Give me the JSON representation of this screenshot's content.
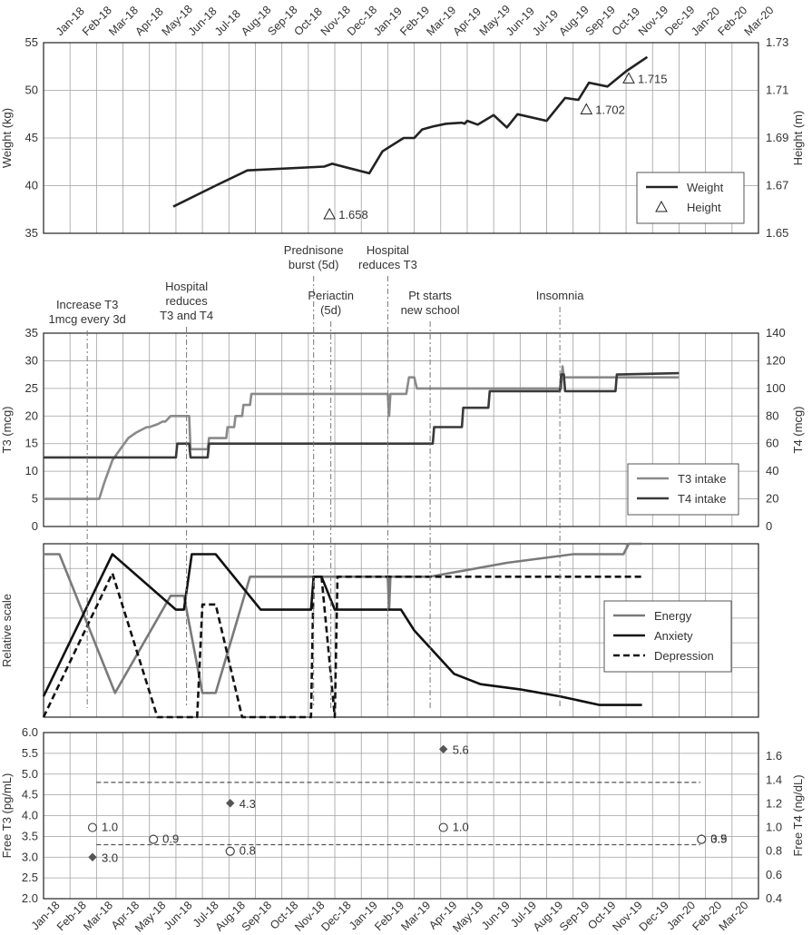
{
  "months": [
    "Jan-18",
    "Feb-18",
    "Mar-18",
    "Apr-18",
    "May-18",
    "Jun-18",
    "Jul-18",
    "Aug-18",
    "Sep-18",
    "Oct-18",
    "Nov-18",
    "Dec-18",
    "Jan-19",
    "Feb-19",
    "Mar-19",
    "Apr-19",
    "May-19",
    "Jun-19",
    "Jul-19",
    "Aug-19",
    "Sep-19",
    "Oct-19",
    "Nov-19",
    "Dec-19",
    "Jan-20",
    "Feb-20",
    "Mar-20"
  ],
  "annotations": [
    {
      "id": "t3-increase",
      "lines": [
        "Increase T3",
        "1mcg every 3d"
      ],
      "x": 1.65
    },
    {
      "id": "hospital-reduces-t3-t4",
      "lines": [
        "Hospital",
        "reduces",
        "T3 and T4"
      ],
      "x": 5.4
    },
    {
      "id": "prednisone",
      "lines": [
        "Prednisone",
        "burst (5d)"
      ],
      "x": 10.2
    },
    {
      "id": "periactin",
      "lines": [
        "Periactin",
        "(5d)"
      ],
      "x": 10.85
    },
    {
      "id": "hospital-reduces-t3",
      "lines": [
        "Hospital",
        "reduces T3"
      ],
      "x": 13.0
    },
    {
      "id": "new-school",
      "lines": [
        "Pt starts",
        "new school"
      ],
      "x": 14.6
    },
    {
      "id": "insomnia",
      "lines": [
        "Insomnia"
      ],
      "x": 19.5
    }
  ],
  "chart_data": [
    {
      "id": "growth",
      "type": "line",
      "ylabel": "Weight (kg)",
      "y2label": "Height (m)",
      "ylim": [
        35,
        55
      ],
      "yticks": [
        35,
        40,
        45,
        50,
        55
      ],
      "y2lim": [
        1.65,
        1.73
      ],
      "y2ticks": [
        "1.65",
        "1.67",
        "1.69",
        "1.71",
        "1.73"
      ],
      "legend_position": "bottom-right",
      "series": [
        {
          "name": "Weight",
          "style": "solid",
          "color": "#222222",
          "x": [
            4.9,
            6.5,
            7.7,
            10.6,
            10.9,
            12.3,
            12.8,
            13.6,
            14.0,
            14.3,
            14.7,
            15.2,
            15.8,
            15.9,
            16.0,
            16.1,
            16.4,
            17.0,
            17.5,
            17.9,
            19.0,
            19.7,
            20.2,
            20.6,
            21.3,
            22.0,
            22.8
          ],
          "y": [
            37.8,
            40.0,
            41.6,
            42.0,
            42.3,
            41.3,
            43.6,
            45.0,
            45.0,
            45.9,
            46.2,
            46.5,
            46.6,
            46.5,
            46.8,
            46.7,
            46.4,
            47.4,
            46.1,
            47.5,
            46.8,
            49.2,
            49.0,
            50.8,
            50.4,
            52.0,
            53.5
          ]
        },
        {
          "name": "Height",
          "style": "triangle",
          "color": "#222222",
          "x": [
            10.8,
            20.5,
            22.1
          ],
          "y": [
            1.658,
            1.702,
            1.715
          ],
          "labels": [
            "1.658",
            "1.702",
            "1.715"
          ]
        }
      ]
    },
    {
      "id": "medication",
      "type": "line",
      "ylabel": "T3 (mcg)",
      "y2label": "T4 (mcg)",
      "ylim": [
        0,
        35
      ],
      "yticks": [
        0,
        5,
        10,
        15,
        20,
        25,
        30,
        35
      ],
      "y2lim": [
        0,
        140
      ],
      "y2ticks": [
        0,
        20,
        40,
        60,
        80,
        100,
        120,
        140
      ],
      "legend_position": "bottom-right",
      "series": [
        {
          "name": "T3 intake",
          "style": "solid",
          "color": "#8a8a8a",
          "x": [
            0,
            2.1,
            2.3,
            2.6,
            2.9,
            3.2,
            3.5,
            3.9,
            4.0,
            4.3,
            4.5,
            4.6,
            4.8,
            5.0,
            5.2,
            5.5,
            5.55,
            5.6,
            6.2,
            6.25,
            6.9,
            6.95,
            7.2,
            7.25,
            7.5,
            7.55,
            7.8,
            7.85,
            8.0,
            8.05,
            8.5,
            8.55,
            13.0,
            13.05,
            13.1,
            13.7,
            13.8,
            14.0,
            14.1,
            19.55,
            19.6,
            19.65,
            19.7,
            22.0,
            24.0
          ],
          "y": [
            5,
            5,
            8,
            12,
            14,
            16,
            17,
            18,
            18,
            18.5,
            19,
            19,
            20,
            20,
            20,
            20,
            14,
            14,
            14,
            16,
            16,
            18,
            18,
            20,
            20,
            22,
            22,
            24,
            24,
            24,
            24,
            24,
            24,
            20,
            24,
            24,
            27,
            27,
            25,
            25,
            29,
            27,
            27,
            27,
            27
          ]
        },
        {
          "name": "T4 intake",
          "style": "solid",
          "color": "#3a3a3a",
          "x": [
            0,
            5.0,
            5.05,
            5.5,
            5.55,
            6.2,
            6.25,
            13.0,
            13.1,
            14.7,
            14.75,
            15.8,
            15.85,
            16.8,
            16.85,
            19.5,
            19.55,
            19.65,
            19.7,
            21.6,
            21.65,
            24.0
          ],
          "y": [
            50,
            50,
            60,
            60,
            50,
            50,
            60,
            60,
            60,
            60,
            72,
            72,
            86,
            86,
            98,
            98,
            110,
            110,
            98,
            98,
            110,
            111
          ]
        }
      ]
    },
    {
      "id": "symptoms",
      "type": "line",
      "ylabel": "Relative scale",
      "ylim": [
        0,
        10
      ],
      "legend_position": "right",
      "series": [
        {
          "name": "Energy",
          "style": "solid",
          "color": "#7a7a7a",
          "x": [
            0,
            0.6,
            2.7,
            4.8,
            5.2,
            5.3,
            6.0,
            6.5,
            7.8,
            9.3,
            9.8,
            9.85,
            10.0,
            10.05,
            11.0,
            13.0,
            13.05,
            13.1,
            14.6,
            17.5,
            20.0,
            21.9,
            22.1,
            22.6
          ],
          "y": [
            9.4,
            9.4,
            1.4,
            7.0,
            7.0,
            7.0,
            1.4,
            1.4,
            8.1,
            8.1,
            8.1,
            8.1,
            8.1,
            8.1,
            8.1,
            8.1,
            6.2,
            8.1,
            8.1,
            8.9,
            9.4,
            9.4,
            10.0,
            10.0
          ]
        },
        {
          "name": "Anxiety",
          "style": "solid",
          "color": "#111111",
          "x": [
            0,
            2.6,
            5.0,
            5.3,
            5.6,
            6.0,
            6.5,
            8.2,
            9.2,
            9.8,
            10.1,
            10.2,
            10.5,
            11.0,
            11.05,
            13.5,
            14.0,
            15.5,
            16.5,
            18.0,
            19.5,
            21.0,
            22.6
          ],
          "y": [
            1.2,
            9.4,
            6.2,
            6.2,
            9.4,
            9.4,
            9.4,
            6.2,
            6.2,
            6.2,
            6.2,
            8.1,
            8.1,
            6.2,
            6.2,
            6.2,
            5.0,
            2.5,
            1.9,
            1.6,
            1.2,
            0.7,
            0.7
          ]
        },
        {
          "name": "Depression",
          "style": "dashed",
          "color": "#111111",
          "x": [
            0,
            2.6,
            4.3,
            5.8,
            6.0,
            6.5,
            7.5,
            8.5,
            9.5,
            10.1,
            10.2,
            10.5,
            11.0,
            11.1,
            13.5,
            17.5,
            22.6
          ],
          "y": [
            0.0,
            8.3,
            0.0,
            0.0,
            6.5,
            6.5,
            0.0,
            0.0,
            0.0,
            0.0,
            8.1,
            8.1,
            0.0,
            8.1,
            8.1,
            8.1,
            8.1
          ]
        }
      ]
    },
    {
      "id": "labs",
      "type": "scatter",
      "ylabel": "Free T3 (pg/mL)",
      "y2label": "Free T4 (ng/dL)",
      "ylim": [
        2.0,
        6.0
      ],
      "yticks": [
        "2.0",
        "2.5",
        "3.0",
        "3.5",
        "4.0",
        "4.5",
        "5.0",
        "5.5",
        "6.0"
      ],
      "y2lim": [
        0.4,
        1.8
      ],
      "y2ticks": [
        "0.4",
        "0.6",
        "0.8",
        "1.0",
        "1.2",
        "1.4",
        "1.6"
      ],
      "reference_lines_t3": [
        3.3,
        4.8
      ],
      "series": [
        {
          "name": "Free T3",
          "marker": "diamond",
          "x": [
            1.85,
            7.05,
            15.1,
            24.85
          ],
          "y": [
            3.0,
            4.3,
            5.6,
            3.45
          ],
          "labels": [
            "3.0",
            "4.3",
            "5.6",
            "3.5"
          ]
        },
        {
          "name": "Free T4",
          "marker": "circle",
          "x": [
            1.85,
            4.15,
            7.05,
            15.1,
            24.85
          ],
          "y": [
            1.0,
            0.9,
            0.8,
            1.0,
            0.9
          ],
          "labels": [
            "1.0",
            "0.9",
            "0.8",
            "1.0",
            "0.9"
          ]
        }
      ]
    }
  ]
}
